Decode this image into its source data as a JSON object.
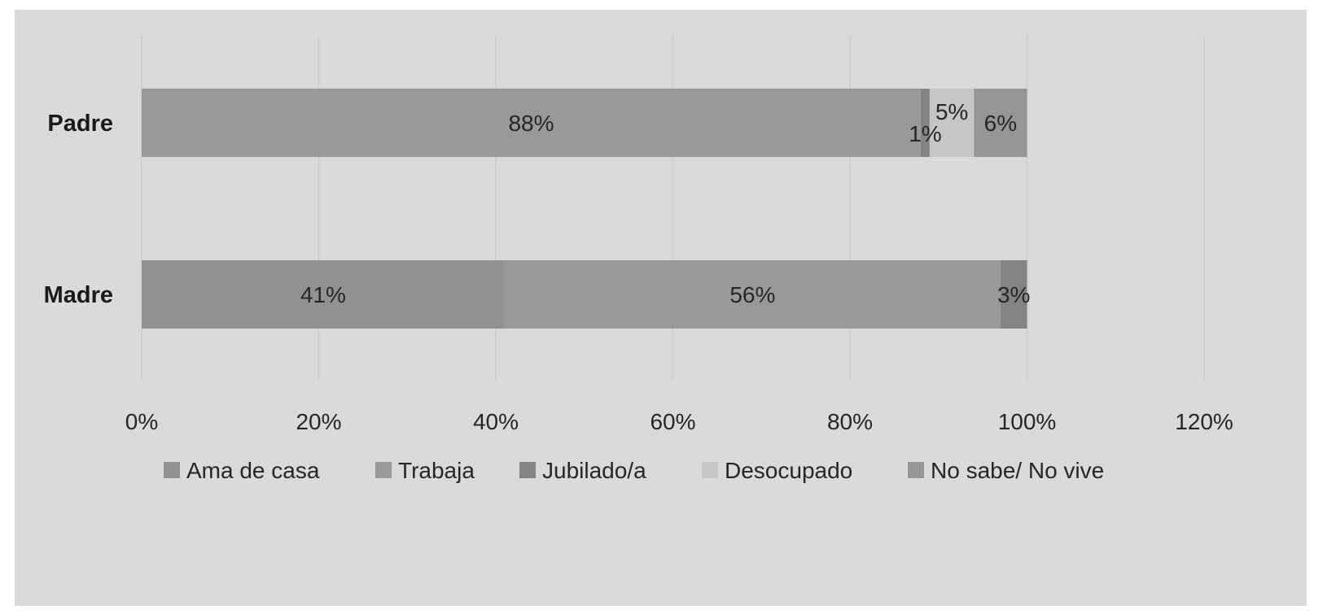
{
  "chart_data": {
    "type": "bar",
    "orientation": "horizontal",
    "stacked": true,
    "categories": [
      "Padre",
      "Madre"
    ],
    "series": [
      {
        "name": "Ama de casa",
        "values": [
          0,
          41
        ],
        "labels": [
          "",
          "41%"
        ],
        "color": "#919191"
      },
      {
        "name": "Trabaja",
        "values": [
          88,
          56
        ],
        "labels": [
          "88%",
          "56%"
        ],
        "color": "#999999"
      },
      {
        "name": "Jubilado/a",
        "values": [
          1,
          3
        ],
        "labels": [
          "1%",
          "3%"
        ],
        "color": "#848484"
      },
      {
        "name": "Desocupado",
        "values": [
          5,
          0
        ],
        "labels": [
          "5%",
          ""
        ],
        "color": "#c6c6c6"
      },
      {
        "name": "No sabe/ No vive",
        "values": [
          6,
          0
        ],
        "labels": [
          "6%",
          ""
        ],
        "color": "#969696"
      }
    ],
    "xlim": [
      0,
      120
    ],
    "x_ticks": [
      "0%",
      "20%",
      "40%",
      "60%",
      "80%",
      "100%",
      "120%"
    ],
    "grid": "vertical",
    "legend": "bottom",
    "title": "",
    "xlabel": "",
    "ylabel": ""
  },
  "colors": {
    "background": "#dadada",
    "gridline": "#cfcfcf",
    "text": "#262626"
  }
}
